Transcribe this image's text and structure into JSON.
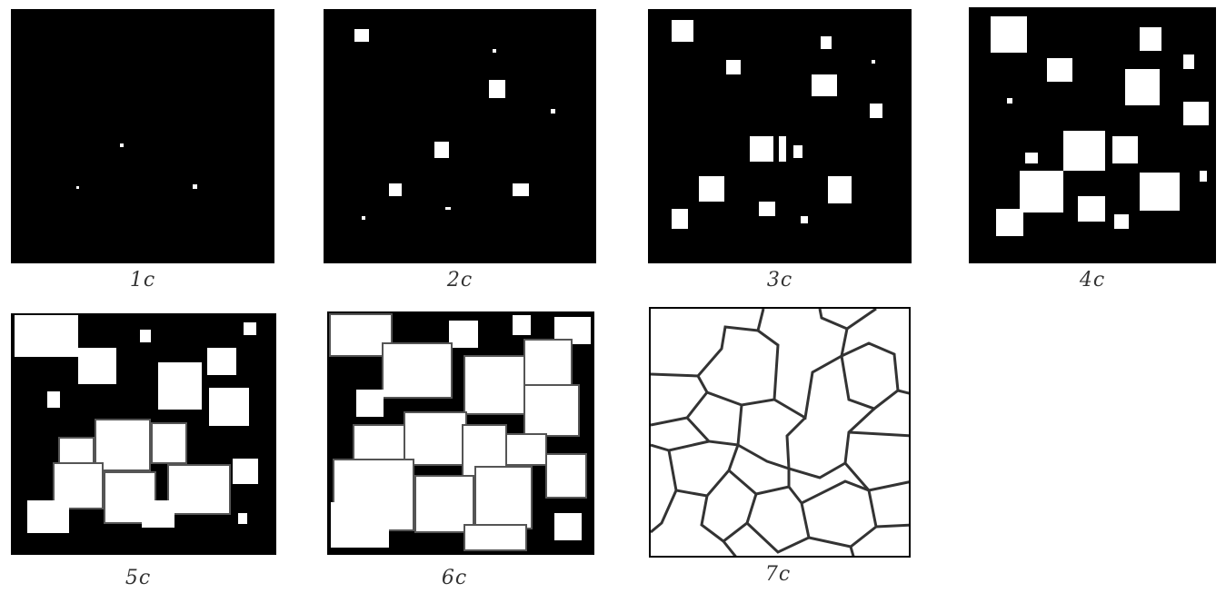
{
  "panels": [
    {
      "id": "p1",
      "label": "1c"
    },
    {
      "id": "p2",
      "label": "2c"
    },
    {
      "id": "p3",
      "label": "3c"
    },
    {
      "id": "p4",
      "label": "4c"
    },
    {
      "id": "p5",
      "label": "5c"
    },
    {
      "id": "p6",
      "label": "6c"
    },
    {
      "id": "p7",
      "label": "7c"
    }
  ]
}
